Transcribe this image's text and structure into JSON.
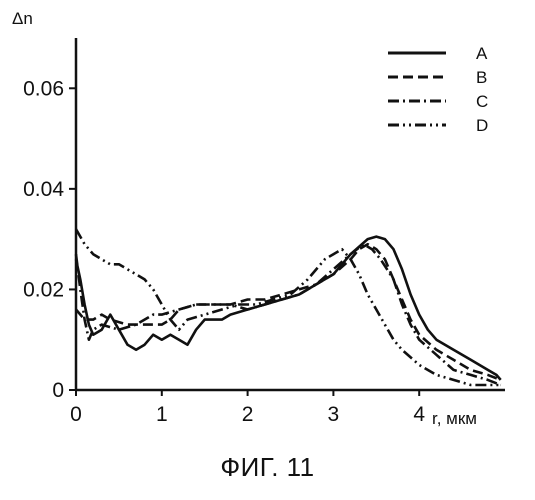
{
  "figure": {
    "caption": "ФИГ. 11"
  },
  "chart_data": {
    "type": "line",
    "ylabel": "Δn",
    "xlabel": "r, мкм",
    "xlim": [
      0,
      5.0
    ],
    "ylim": [
      0,
      0.07
    ],
    "x_ticks": [
      {
        "value": 0,
        "label": "0"
      },
      {
        "value": 1,
        "label": "1"
      },
      {
        "value": 2,
        "label": "2"
      },
      {
        "value": 3,
        "label": "3"
      },
      {
        "value": 4,
        "label": "4"
      }
    ],
    "y_ticks": [
      {
        "value": 0,
        "label": "0"
      },
      {
        "value": 0.02,
        "label": "0.02"
      },
      {
        "value": 0.04,
        "label": "0.04"
      },
      {
        "value": 0.06,
        "label": "0.06"
      }
    ],
    "grid": false,
    "legend_position": "top-right",
    "series": [
      {
        "name": "A",
        "style": "solid",
        "points": [
          [
            0.0,
            0.026
          ],
          [
            0.05,
            0.022
          ],
          [
            0.1,
            0.017
          ],
          [
            0.15,
            0.013
          ],
          [
            0.2,
            0.011
          ],
          [
            0.3,
            0.012
          ],
          [
            0.4,
            0.015
          ],
          [
            0.5,
            0.012
          ],
          [
            0.6,
            0.009
          ],
          [
            0.7,
            0.008
          ],
          [
            0.8,
            0.009
          ],
          [
            0.9,
            0.011
          ],
          [
            1.0,
            0.01
          ],
          [
            1.1,
            0.011
          ],
          [
            1.2,
            0.01
          ],
          [
            1.3,
            0.009
          ],
          [
            1.4,
            0.012
          ],
          [
            1.5,
            0.014
          ],
          [
            1.6,
            0.014
          ],
          [
            1.7,
            0.014
          ],
          [
            1.8,
            0.015
          ],
          [
            2.0,
            0.016
          ],
          [
            2.2,
            0.017
          ],
          [
            2.4,
            0.018
          ],
          [
            2.6,
            0.019
          ],
          [
            2.8,
            0.021
          ],
          [
            3.0,
            0.023
          ],
          [
            3.2,
            0.027
          ],
          [
            3.4,
            0.03
          ],
          [
            3.5,
            0.0305
          ],
          [
            3.6,
            0.03
          ],
          [
            3.7,
            0.028
          ],
          [
            3.8,
            0.024
          ],
          [
            3.9,
            0.019
          ],
          [
            4.0,
            0.015
          ],
          [
            4.1,
            0.012
          ],
          [
            4.2,
            0.01
          ],
          [
            4.4,
            0.008
          ],
          [
            4.6,
            0.006
          ],
          [
            4.8,
            0.004
          ],
          [
            4.9,
            0.003
          ],
          [
            4.95,
            0.002
          ]
        ]
      },
      {
        "name": "B",
        "style": "dashed",
        "points": [
          [
            0.0,
            0.016
          ],
          [
            0.1,
            0.014
          ],
          [
            0.2,
            0.014
          ],
          [
            0.3,
            0.015
          ],
          [
            0.4,
            0.014
          ],
          [
            0.6,
            0.013
          ],
          [
            0.8,
            0.013
          ],
          [
            1.0,
            0.013
          ],
          [
            1.1,
            0.014
          ],
          [
            1.2,
            0.016
          ],
          [
            1.4,
            0.017
          ],
          [
            1.6,
            0.017
          ],
          [
            1.8,
            0.017
          ],
          [
            2.0,
            0.018
          ],
          [
            2.2,
            0.018
          ],
          [
            2.4,
            0.019
          ],
          [
            2.6,
            0.02
          ],
          [
            2.8,
            0.021
          ],
          [
            3.0,
            0.023
          ],
          [
            3.2,
            0.026
          ],
          [
            3.3,
            0.028
          ],
          [
            3.4,
            0.029
          ],
          [
            3.5,
            0.028
          ],
          [
            3.6,
            0.026
          ],
          [
            3.7,
            0.022
          ],
          [
            3.8,
            0.018
          ],
          [
            3.9,
            0.014
          ],
          [
            4.0,
            0.011
          ],
          [
            4.2,
            0.008
          ],
          [
            4.4,
            0.006
          ],
          [
            4.6,
            0.004
          ],
          [
            4.8,
            0.003
          ],
          [
            4.95,
            0.002
          ]
        ]
      },
      {
        "name": "C",
        "style": "dash-dot",
        "points": [
          [
            0.0,
            0.027
          ],
          [
            0.05,
            0.02
          ],
          [
            0.1,
            0.014
          ],
          [
            0.15,
            0.01
          ],
          [
            0.2,
            0.012
          ],
          [
            0.3,
            0.013
          ],
          [
            0.5,
            0.012
          ],
          [
            0.7,
            0.013
          ],
          [
            0.9,
            0.015
          ],
          [
            1.0,
            0.015
          ],
          [
            1.2,
            0.016
          ],
          [
            1.4,
            0.017
          ],
          [
            1.6,
            0.017
          ],
          [
            1.8,
            0.017
          ],
          [
            2.0,
            0.016
          ],
          [
            2.2,
            0.017
          ],
          [
            2.4,
            0.018
          ],
          [
            2.6,
            0.019
          ],
          [
            2.8,
            0.021
          ],
          [
            3.0,
            0.024
          ],
          [
            3.2,
            0.027
          ],
          [
            3.35,
            0.029
          ],
          [
            3.45,
            0.028
          ],
          [
            3.55,
            0.026
          ],
          [
            3.7,
            0.022
          ],
          [
            3.8,
            0.017
          ],
          [
            3.9,
            0.013
          ],
          [
            4.0,
            0.01
          ],
          [
            4.2,
            0.007
          ],
          [
            4.4,
            0.004
          ],
          [
            4.6,
            0.003
          ],
          [
            4.8,
            0.002
          ],
          [
            4.95,
            0.001
          ]
        ]
      },
      {
        "name": "D",
        "style": "dash-dot-dot",
        "points": [
          [
            0.0,
            0.032
          ],
          [
            0.1,
            0.029
          ],
          [
            0.2,
            0.027
          ],
          [
            0.3,
            0.026
          ],
          [
            0.4,
            0.025
          ],
          [
            0.5,
            0.025
          ],
          [
            0.6,
            0.024
          ],
          [
            0.7,
            0.023
          ],
          [
            0.8,
            0.022
          ],
          [
            0.9,
            0.02
          ],
          [
            1.0,
            0.017
          ],
          [
            1.1,
            0.014
          ],
          [
            1.2,
            0.012
          ],
          [
            1.3,
            0.014
          ],
          [
            1.5,
            0.015
          ],
          [
            1.7,
            0.016
          ],
          [
            1.9,
            0.017
          ],
          [
            2.1,
            0.017
          ],
          [
            2.3,
            0.018
          ],
          [
            2.5,
            0.019
          ],
          [
            2.7,
            0.022
          ],
          [
            2.9,
            0.026
          ],
          [
            3.0,
            0.027
          ],
          [
            3.1,
            0.028
          ],
          [
            3.2,
            0.026
          ],
          [
            3.3,
            0.023
          ],
          [
            3.4,
            0.019
          ],
          [
            3.5,
            0.016
          ],
          [
            3.6,
            0.013
          ],
          [
            3.7,
            0.01
          ],
          [
            3.8,
            0.008
          ],
          [
            4.0,
            0.005
          ],
          [
            4.2,
            0.003
          ],
          [
            4.4,
            0.002
          ],
          [
            4.6,
            0.001
          ],
          [
            4.8,
            0.001
          ],
          [
            4.95,
            0.001
          ]
        ]
      }
    ]
  }
}
